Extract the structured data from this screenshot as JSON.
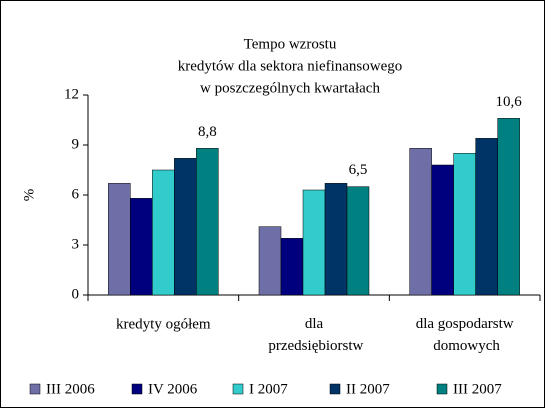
{
  "chart_data": {
    "type": "bar",
    "title": [
      "Tempo wzrostu",
      "kredytów dla sektora niefinansowego",
      "w poszczególnych kwartałach"
    ],
    "y_label": "%",
    "categories": [
      "kredyty ogółem",
      "dla przedsiębiorstw",
      "dla gospodarstw domowych"
    ],
    "series": [
      {
        "name": "III 2006",
        "color": "#6f6fa8",
        "values": [
          6.7,
          4.1,
          8.8
        ]
      },
      {
        "name": "IV 2006",
        "color": "#00007f",
        "values": [
          5.8,
          3.4,
          7.8
        ]
      },
      {
        "name": "I 2007",
        "color": "#33cccc",
        "values": [
          7.5,
          6.3,
          8.5
        ]
      },
      {
        "name": "II 2007",
        "color": "#003366",
        "values": [
          8.2,
          6.7,
          9.4
        ]
      },
      {
        "name": "III 2007",
        "color": "#008080",
        "values": [
          8.8,
          6.5,
          10.6
        ],
        "value_labels": [
          "8,8",
          "6,5",
          "10,6"
        ]
      }
    ],
    "ylim": [
      0,
      12
    ],
    "yticks": [
      0,
      3,
      6,
      9,
      12
    ],
    "grid": false
  }
}
